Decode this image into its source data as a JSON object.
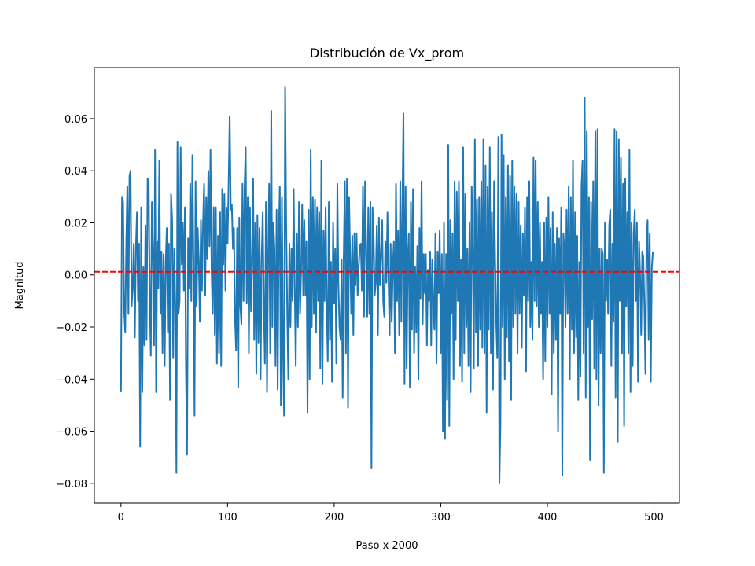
{
  "chart_data": {
    "type": "line",
    "title": "Distribución de Vx_prom",
    "xlabel": "Paso x 2000",
    "ylabel": "Magnitud",
    "color": "#1f77b4",
    "hline": {
      "value": 0.0012,
      "color": "#ff0000"
    },
    "xlim": [
      -24.95,
      523.95
    ],
    "xticks": [
      0,
      100,
      200,
      300,
      400,
      500
    ],
    "ylim": [
      -0.0876,
      0.0796
    ],
    "yticks": [
      {
        "value": -0.08,
        "label": "−0.08"
      },
      {
        "value": -0.06,
        "label": "−0.06"
      },
      {
        "value": -0.04,
        "label": "−0.04"
      },
      {
        "value": -0.02,
        "label": "−0.02"
      },
      {
        "value": 0,
        "label": "0.00"
      },
      0.02,
      0.04,
      0.06
    ],
    "x": [
      0,
      1,
      2,
      3,
      4,
      5,
      6,
      7,
      8,
      9,
      10,
      11,
      12,
      13,
      14,
      15,
      16,
      17,
      18,
      19,
      20,
      21,
      22,
      23,
      24,
      25,
      26,
      27,
      28,
      29,
      30,
      31,
      32,
      33,
      34,
      35,
      36,
      37,
      38,
      39,
      40,
      41,
      42,
      43,
      44,
      45,
      46,
      47,
      48,
      49,
      50,
      51,
      52,
      53,
      54,
      55,
      56,
      57,
      58,
      59,
      60,
      61,
      62,
      63,
      64,
      65,
      66,
      67,
      68,
      69,
      70,
      71,
      72,
      73,
      74,
      75,
      76,
      77,
      78,
      79,
      80,
      81,
      82,
      83,
      84,
      85,
      86,
      87,
      88,
      89,
      90,
      91,
      92,
      93,
      94,
      95,
      96,
      97,
      98,
      99,
      100,
      101,
      102,
      103,
      104,
      105,
      106,
      107,
      108,
      109,
      110,
      111,
      112,
      113,
      114,
      115,
      116,
      117,
      118,
      119,
      120,
      121,
      122,
      123,
      124,
      125,
      126,
      127,
      128,
      129,
      130,
      131,
      132,
      133,
      134,
      135,
      136,
      137,
      138,
      139,
      140,
      141,
      142,
      143,
      144,
      145,
      146,
      147,
      148,
      149,
      150,
      151,
      152,
      153,
      154,
      155,
      156,
      157,
      158,
      159,
      160,
      161,
      162,
      163,
      164,
      165,
      166,
      167,
      168,
      169,
      170,
      171,
      172,
      173,
      174,
      175,
      176,
      177,
      178,
      179,
      180,
      181,
      182,
      183,
      184,
      185,
      186,
      187,
      188,
      189,
      190,
      191,
      192,
      193,
      194,
      195,
      196,
      197,
      198,
      199,
      200,
      201,
      202,
      203,
      204,
      205,
      206,
      207,
      208,
      209,
      210,
      211,
      212,
      213,
      214,
      215,
      216,
      217,
      218,
      219,
      220,
      221,
      222,
      223,
      224,
      225,
      226,
      227,
      228,
      229,
      230,
      231,
      232,
      233,
      234,
      235,
      236,
      237,
      238,
      239,
      240,
      241,
      242,
      243,
      244,
      245,
      246,
      247,
      248,
      249,
      250,
      251,
      252,
      253,
      254,
      255,
      256,
      257,
      258,
      259,
      260,
      261,
      262,
      263,
      264,
      265,
      266,
      267,
      268,
      269,
      270,
      271,
      272,
      273,
      274,
      275,
      276,
      277,
      278,
      279,
      280,
      281,
      282,
      283,
      284,
      285,
      286,
      287,
      288,
      289,
      290,
      291,
      292,
      293,
      294,
      295,
      296,
      297,
      298,
      299,
      300,
      301,
      302,
      303,
      304,
      305,
      306,
      307,
      308,
      309,
      310,
      311,
      312,
      313,
      314,
      315,
      316,
      317,
      318,
      319,
      320,
      321,
      322,
      323,
      324,
      325,
      326,
      327,
      328,
      329,
      330,
      331,
      332,
      333,
      334,
      335,
      336,
      337,
      338,
      339,
      340,
      341,
      342,
      343,
      344,
      345,
      346,
      347,
      348,
      349,
      350,
      351,
      352,
      353,
      354,
      355,
      356,
      357,
      358,
      359,
      360,
      361,
      362,
      363,
      364,
      365,
      366,
      367,
      368,
      369,
      370,
      371,
      372,
      373,
      374,
      375,
      376,
      377,
      378,
      379,
      380,
      381,
      382,
      383,
      384,
      385,
      386,
      387,
      388,
      389,
      390,
      391,
      392,
      393,
      394,
      395,
      396,
      397,
      398,
      399,
      400,
      401,
      402,
      403,
      404,
      405,
      406,
      407,
      408,
      409,
      410,
      411,
      412,
      413,
      414,
      415,
      416,
      417,
      418,
      419,
      420,
      421,
      422,
      423,
      424,
      425,
      426,
      427,
      428,
      429,
      430,
      431,
      432,
      433,
      434,
      435,
      436,
      437,
      438,
      439,
      440,
      441,
      442,
      443,
      444,
      445,
      446,
      447,
      448,
      449,
      450,
      451,
      452,
      453,
      454,
      455,
      456,
      457,
      458,
      459,
      460,
      461,
      462,
      463,
      464,
      465,
      466,
      467,
      468,
      469,
      470,
      471,
      472,
      473,
      474,
      475,
      476,
      477,
      478,
      479,
      480,
      481,
      482,
      483,
      484,
      485,
      486,
      487,
      488,
      489,
      490,
      491,
      492,
      493,
      494,
      495,
      496,
      497,
      498,
      499
    ],
    "values": [
      -0.045,
      0.03,
      0.028,
      -0.014,
      -0.022,
      0.013,
      0.034,
      -0.015,
      0.038,
      0.04,
      -0.012,
      -0.005,
      0.012,
      -0.024,
      0.01,
      0.024,
      -0.01,
      0.012,
      -0.066,
      0.026,
      -0.045,
      0.003,
      -0.027,
      0.019,
      -0.025,
      0.037,
      0.035,
      -0.01,
      -0.031,
      0.028,
      0.01,
      -0.027,
      0.048,
      -0.045,
      0.013,
      -0.005,
      0.044,
      -0.015,
      0.009,
      -0.03,
      0.008,
      -0.035,
      0.005,
      0.018,
      -0.022,
      0.012,
      -0.048,
      0.031,
      0.021,
      -0.032,
      0.01,
      -0.012,
      -0.076,
      0.051,
      -0.015,
      -0.01,
      0.049,
      0.004,
      0.02,
      -0.006,
      0.026,
      -0.037,
      -0.069,
      0.014,
      -0.005,
      0.035,
      -0.01,
      0.046,
      0.005,
      -0.054,
      0.036,
      -0.012,
      0.018,
      0.006,
      -0.018,
      0.021,
      -0.006,
      0.02,
      0.035,
      -0.008,
      0.03,
      0.006,
      0.04,
      0.011,
      0.048,
      0.002,
      -0.015,
      0.026,
      -0.023,
      0.026,
      -0.034,
      0.015,
      -0.03,
      0.024,
      -0.035,
      0.033,
      0.004,
      0.031,
      -0.006,
      0.026,
      0.012,
      0.035,
      0.061,
      0.025,
      0.027,
      0.01,
      0.018,
      -0.017,
      -0.029,
      0.018,
      -0.043,
      0.022,
      -0.012,
      -0.019,
      0.035,
      -0.01,
      0.034,
      0.049,
      -0.011,
      0.03,
      -0.03,
      0.026,
      -0.014,
      0.005,
      0.037,
      -0.025,
      0.02,
      -0.038,
      0.023,
      -0.026,
      0.018,
      -0.04,
      0.006,
      0.024,
      -0.012,
      -0.034,
      0.028,
      -0.045,
      0.005,
      0.035,
      -0.03,
      0.063,
      -0.02,
      0.02,
      0.01,
      -0.035,
      0.025,
      -0.044,
      0.014,
      0.034,
      -0.05,
      0.03,
      -0.028,
      -0.054,
      0.072,
      0.02,
      -0.015,
      -0.04,
      0.012,
      -0.02,
      0.01,
      -0.01,
      0.033,
      -0.005,
      -0.035,
      0.016,
      -0.02,
      0.028,
      -0.015,
      0.002,
      0.027,
      -0.008,
      0.021,
      -0.008,
      0.013,
      -0.053,
      0.025,
      -0.04,
      0.048,
      -0.02,
      0.03,
      -0.015,
      0.029,
      -0.022,
      0.026,
      -0.01,
      0.024,
      -0.036,
      0.044,
      -0.042,
      0.017,
      -0.01,
      0.026,
      -0.013,
      -0.033,
      0.028,
      -0.025,
      0.005,
      -0.041,
      0.02,
      -0.011,
      0.01,
      -0.034,
      0.035,
      -0.004,
      -0.02,
      -0.025,
      0.006,
      -0.047,
      0.008,
      0.036,
      -0.03,
      0.037,
      -0.051,
      0.03,
      0.007,
      -0.015,
      0.015,
      -0.023,
      0.016,
      -0.004,
      0.016,
      -0.008,
      0.003,
      0.011,
      0.012,
      -0.006,
      0.034,
      -0.016,
      0.036,
      0.01,
      -0.016,
      0.026,
      -0.015,
      0.028,
      -0.074,
      0.026,
      0.015,
      -0.008,
      -0.003,
      0.019,
      -0.023,
      0.022,
      -0.004,
      0.008,
      0.021,
      -0.01,
      -0.016,
      0.013,
      -0.003,
      0.024,
      -0.002,
      -0.023,
      0.012,
      -0.018,
      0.003,
      0.013,
      -0.03,
      0.035,
      -0.01,
      0.017,
      -0.023,
      0.036,
      -0.018,
      0.026,
      0.062,
      -0.042,
      0.034,
      -0.036,
      0.005,
      0.016,
      -0.043,
      0.028,
      -0.021,
      0.033,
      -0.03,
      0.003,
      -0.022,
      0.011,
      -0.04,
      0.018,
      -0.009,
      0.036,
      -0.019,
      0.008,
      -0.007,
      0.008,
      -0.027,
      0.002,
      -0.01,
      0.009,
      -0.027,
      0.006,
      -0.01,
      -0.021,
      0.016,
      -0.034,
      0.009,
      -0.007,
      0.017,
      -0.03,
      0.008,
      -0.06,
      0.02,
      -0.063,
      0.008,
      -0.048,
      0.05,
      -0.058,
      0.021,
      -0.015,
      0.016,
      -0.04,
      0.036,
      -0.025,
      0.032,
      -0.01,
      0.036,
      -0.035,
      0.006,
      -0.041,
      0.049,
      -0.03,
      0.031,
      -0.02,
      0.01,
      -0.035,
      0.02,
      -0.045,
      0.034,
      0.01,
      -0.036,
      0.052,
      -0.022,
      0.029,
      -0.035,
      0.03,
      -0.021,
      0.036,
      -0.028,
      0.052,
      -0.03,
      0.042,
      -0.053,
      0.034,
      -0.021,
      0.049,
      -0.03,
      0.024,
      -0.044,
      0.036,
      0.006,
      -0.018,
      -0.032,
      0.053,
      -0.08,
      -0.057,
      0.054,
      -0.02,
      0.046,
      -0.04,
      0.03,
      -0.024,
      0.042,
      -0.033,
      0.038,
      -0.048,
      0.044,
      -0.02,
      0.034,
      -0.015,
      0.031,
      -0.03,
      0.028,
      -0.015,
      0.019,
      -0.028,
      0.016,
      -0.008,
      0.026,
      -0.037,
      0.03,
      -0.01,
      0.036,
      -0.02,
      0.005,
      -0.025,
      0.045,
      -0.01,
      0.044,
      -0.012,
      0.028,
      -0.02,
      0.02,
      -0.015,
      0.005,
      -0.04,
      0.02,
      -0.033,
      0.022,
      -0.02,
      0.03,
      -0.015,
      0.018,
      -0.046,
      0.024,
      -0.03,
      0.012,
      -0.025,
      0.018,
      -0.06,
      0.014,
      -0.015,
      0.026,
      -0.077,
      0.016,
      0.009,
      -0.02,
      0.025,
      -0.015,
      0.034,
      -0.04,
      0.03,
      -0.021,
      0.044,
      -0.03,
      0.024,
      -0.024,
      0.015,
      -0.048,
      0.005,
      -0.039,
      0.034,
      0.044,
      -0.03,
      0.068,
      -0.047,
      0.055,
      -0.02,
      0.03,
      -0.071,
      0.028,
      -0.017,
      0.036,
      -0.036,
      0.055,
      -0.04,
      0.056,
      -0.05,
      0.01,
      -0.03,
      0.01,
      0.008,
      -0.076,
      0.02,
      -0.01,
      0.006,
      -0.015,
      0.019,
      0.025,
      -0.035,
      0.012,
      -0.018,
      0.056,
      -0.047,
      0.055,
      -0.064,
      0.052,
      -0.01,
      0.045,
      -0.03,
      0.035,
      -0.058,
      0.037,
      -0.012,
      0.024,
      -0.03,
      0.048,
      -0.045,
      0.02,
      -0.035,
      0.016,
      0.025,
      -0.01,
      0.02,
      -0.041,
      0.013,
      0.0,
      -0.023,
      0.009,
      0.007,
      -0.012,
      -0.038,
      0.013,
      0.021,
      -0.025,
      0.016,
      -0.041,
      0.003,
      0.009
    ]
  }
}
